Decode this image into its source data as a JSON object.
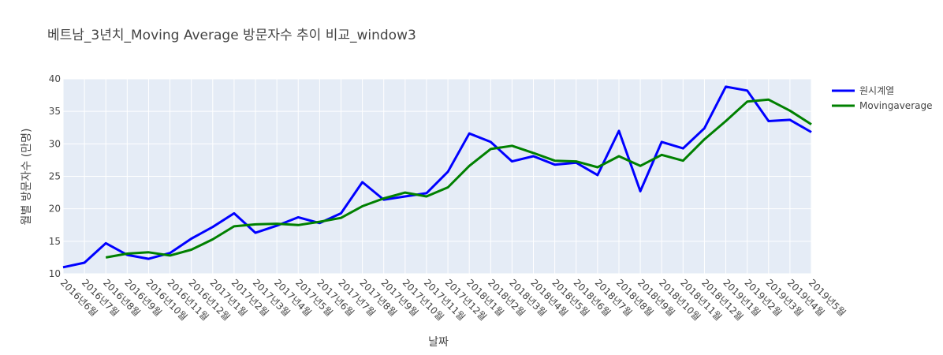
{
  "chart_data": {
    "type": "line",
    "title": "베트남_3년치_Moving Average 방문자수 추이 비교_window3",
    "xlabel": "날짜",
    "ylabel": "월별 방문자수 (만명)",
    "ylim": [
      10,
      40
    ],
    "yticks": [
      10,
      15,
      20,
      25,
      30,
      35,
      40
    ],
    "grid": true,
    "legend_position": "top-right",
    "categories": [
      "2016년6월",
      "2016년7월",
      "2016년8월",
      "2016년9월",
      "2016년10월",
      "2016년11월",
      "2016년12월",
      "2017년1월",
      "2017년2월",
      "2017년3월",
      "2017년4월",
      "2017년5월",
      "2017년6월",
      "2017년7월",
      "2017년8월",
      "2017년9월",
      "2017년10월",
      "2017년11월",
      "2017년12월",
      "2018년1월",
      "2018년2월",
      "2018년3월",
      "2018년4월",
      "2018년5월",
      "2018년6월",
      "2018년7월",
      "2018년8월",
      "2018년9월",
      "2018년10월",
      "2018년11월",
      "2018년12월",
      "2019년1월",
      "2019년2월",
      "2019년3월",
      "2019년4월",
      "2019년5월"
    ],
    "series": [
      {
        "name": "원시계열",
        "color": "#0000ff",
        "values": [
          11.0,
          11.7,
          14.7,
          12.9,
          12.3,
          13.2,
          15.4,
          17.2,
          19.3,
          16.3,
          17.4,
          18.7,
          17.8,
          19.3,
          24.1,
          21.4,
          21.9,
          22.4,
          25.7,
          31.6,
          30.3,
          27.3,
          28.1,
          26.8,
          27.1,
          25.2,
          32.0,
          22.7,
          30.3,
          29.3,
          32.4,
          38.8,
          38.2,
          33.5,
          33.7,
          31.8
        ]
      },
      {
        "name": "Movingaverage",
        "color": "#008000",
        "values": [
          null,
          null,
          12.5,
          13.1,
          13.3,
          12.8,
          13.7,
          15.3,
          17.3,
          17.6,
          17.7,
          17.5,
          18.0,
          18.6,
          20.4,
          21.6,
          22.5,
          21.9,
          23.3,
          26.6,
          29.2,
          29.7,
          28.6,
          27.4,
          27.3,
          26.4,
          28.1,
          26.6,
          28.3,
          27.4,
          30.7,
          33.5,
          36.5,
          36.8,
          35.1,
          33.0
        ]
      }
    ]
  }
}
